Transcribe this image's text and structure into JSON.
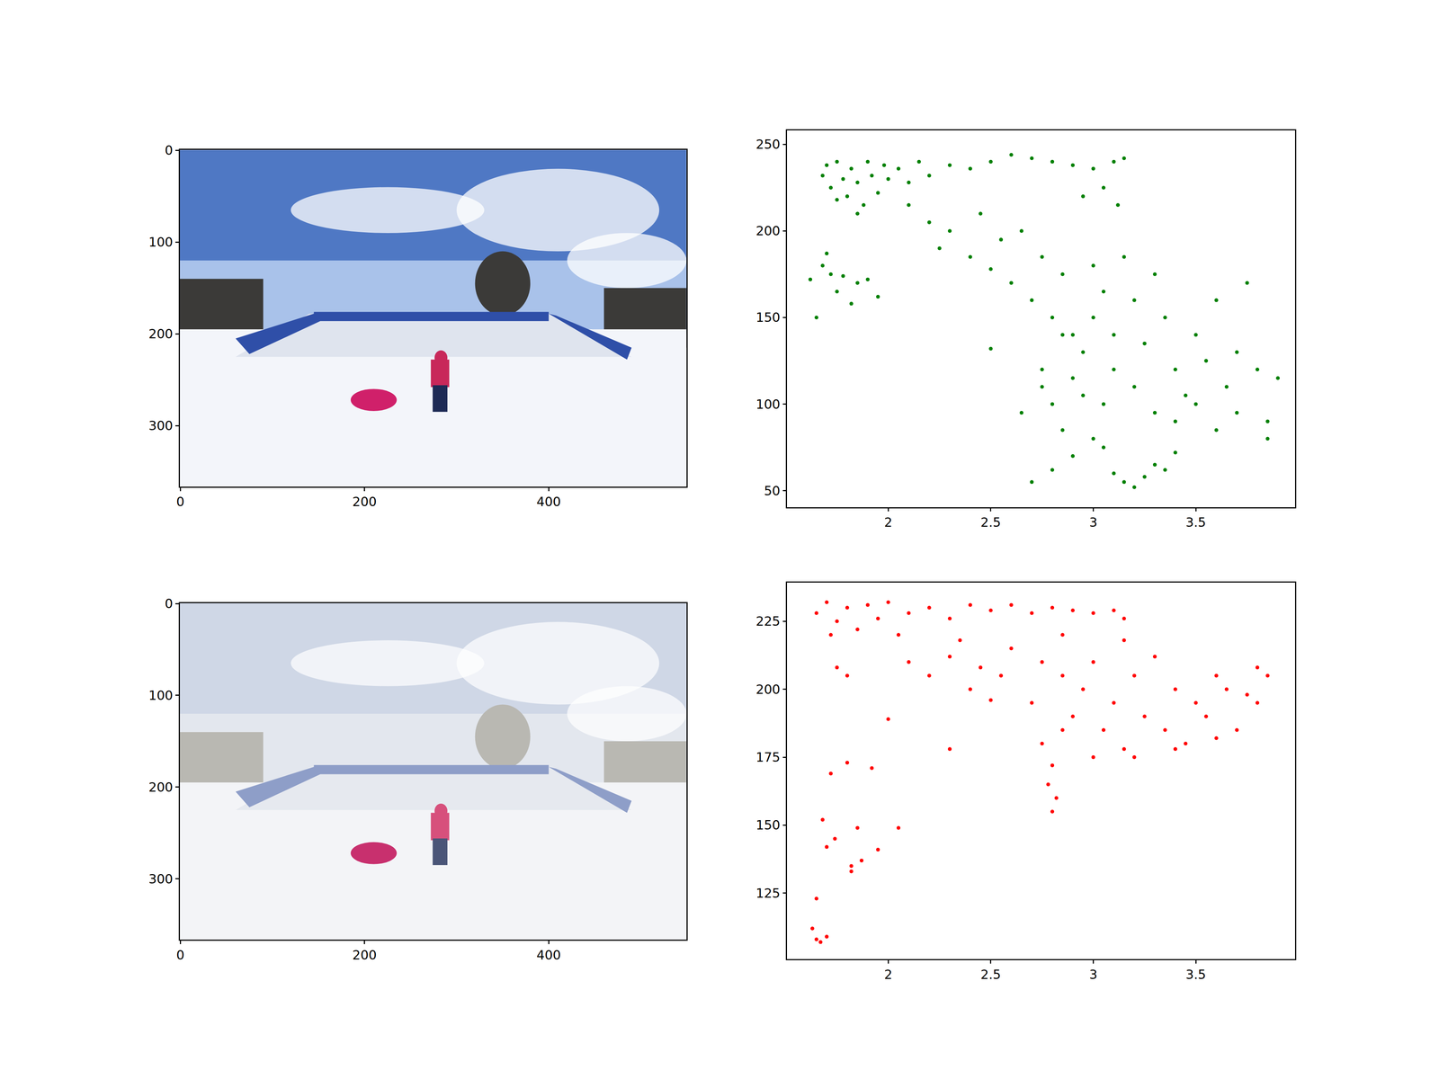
{
  "chart_data": [
    {
      "type": "image",
      "xlim": [
        -0.5,
        549.5
      ],
      "ylim": [
        366.5,
        -0.5
      ],
      "xticks": [
        0,
        200,
        400
      ],
      "yticks": [
        0,
        100,
        200,
        300
      ]
    },
    {
      "type": "scatter",
      "color": "#008000",
      "marker": "circle",
      "x": [
        1.62,
        1.65,
        1.68,
        1.7,
        1.72,
        1.75,
        1.78,
        1.82,
        1.85,
        1.9,
        1.95,
        1.68,
        1.7,
        1.72,
        1.75,
        1.78,
        1.8,
        1.82,
        1.85,
        1.88,
        1.9,
        1.92,
        1.95,
        1.98,
        2.0,
        1.85,
        1.75,
        2.05,
        2.1,
        2.15,
        2.2,
        2.3,
        2.4,
        2.5,
        2.6,
        2.7,
        2.8,
        2.9,
        3.0,
        3.1,
        3.15,
        3.05,
        3.12,
        2.95,
        2.1,
        2.2,
        2.25,
        2.3,
        2.4,
        2.45,
        2.5,
        2.55,
        2.6,
        2.65,
        2.7,
        2.75,
        2.8,
        2.85,
        2.5,
        2.9,
        2.75,
        2.8,
        2.85,
        2.9,
        2.95,
        3.0,
        3.0,
        3.05,
        3.05,
        3.1,
        3.1,
        3.15,
        3.2,
        3.2,
        3.25,
        3.3,
        3.3,
        3.35,
        3.4,
        3.45,
        3.5,
        3.55,
        3.6,
        3.65,
        3.7,
        3.75,
        3.8,
        3.85,
        3.9,
        3.85,
        3.7,
        3.6,
        3.5,
        3.4,
        2.85,
        2.95,
        2.7,
        2.8,
        2.9,
        3.0,
        3.1,
        3.15,
        3.2,
        3.25,
        3.3,
        3.35,
        3.4,
        3.05,
        2.75,
        2.65
      ],
      "values": [
        172,
        150,
        180,
        187,
        175,
        165,
        174,
        158,
        170,
        172,
        162,
        232,
        238,
        225,
        240,
        230,
        220,
        236,
        228,
        215,
        240,
        232,
        222,
        238,
        230,
        210,
        218,
        236,
        228,
        240,
        232,
        238,
        236,
        240,
        244,
        242,
        240,
        238,
        236,
        240,
        242,
        225,
        215,
        220,
        215,
        205,
        190,
        200,
        185,
        210,
        178,
        195,
        170,
        200,
        160,
        185,
        150,
        175,
        132,
        140,
        120,
        100,
        85,
        115,
        130,
        150,
        180,
        165,
        100,
        140,
        120,
        185,
        160,
        110,
        135,
        175,
        95,
        150,
        120,
        105,
        140,
        125,
        160,
        110,
        130,
        170,
        120,
        90,
        115,
        80,
        95,
        85,
        100,
        90,
        140,
        105,
        55,
        62,
        70,
        80,
        60,
        55,
        52,
        58,
        65,
        62,
        72,
        75,
        110,
        95
      ],
      "xlim": [
        1.507,
        3.984
      ],
      "ylim": [
        40.5,
        258
      ],
      "xticks": [
        2.0,
        2.5,
        3.0,
        3.5
      ],
      "yticks": [
        50,
        100,
        150,
        200,
        250
      ]
    },
    {
      "type": "image",
      "xlim": [
        -0.5,
        549.5
      ],
      "ylim": [
        366.5,
        -0.5
      ],
      "xticks": [
        0,
        200,
        400
      ],
      "yticks": [
        0,
        100,
        200,
        300
      ]
    },
    {
      "type": "scatter",
      "color": "#ff0000",
      "marker": "circle",
      "x": [
        1.63,
        1.65,
        1.67,
        1.65,
        1.7,
        1.68,
        1.7,
        1.72,
        1.74,
        1.82,
        1.82,
        1.85,
        1.87,
        1.8,
        1.92,
        1.95,
        2.05,
        2.0,
        1.8,
        1.75,
        1.65,
        1.7,
        1.75,
        1.8,
        1.85,
        1.9,
        1.95,
        2.0,
        2.1,
        2.2,
        2.3,
        2.4,
        2.5,
        2.6,
        2.7,
        2.8,
        2.9,
        3.0,
        3.1,
        3.15,
        1.72,
        2.05,
        2.35,
        2.6,
        2.85,
        3.15,
        2.1,
        2.2,
        2.3,
        2.4,
        2.45,
        2.5,
        2.55,
        2.3,
        2.7,
        2.75,
        2.85,
        2.75,
        2.8,
        2.82,
        2.8,
        2.78,
        2.9,
        2.95,
        3.0,
        3.05,
        3.1,
        3.15,
        3.2,
        3.25,
        3.3,
        3.35,
        3.4,
        3.45,
        3.5,
        3.55,
        3.6,
        3.65,
        3.7,
        3.75,
        3.8,
        3.85,
        3.8,
        3.6,
        3.4,
        3.0,
        3.2,
        2.85
      ],
      "values": [
        112,
        108,
        107,
        123,
        109,
        152,
        142,
        169,
        145,
        133,
        135,
        149,
        137,
        173,
        171,
        141,
        149,
        189,
        205,
        208,
        228,
        232,
        225,
        230,
        222,
        231,
        226,
        232,
        228,
        230,
        226,
        231,
        229,
        231,
        228,
        230,
        229,
        228,
        229,
        226,
        220,
        220,
        218,
        215,
        220,
        218,
        210,
        205,
        212,
        200,
        208,
        196,
        205,
        178,
        195,
        210,
        205,
        180,
        172,
        160,
        155,
        165,
        190,
        200,
        210,
        185,
        195,
        178,
        205,
        190,
        212,
        185,
        200,
        180,
        195,
        190,
        205,
        200,
        185,
        198,
        208,
        205,
        195,
        182,
        178,
        175,
        175,
        185
      ],
      "xlim": [
        1.507,
        3.984
      ],
      "ylim": [
        100.7,
        239.2
      ],
      "xticks": [
        2.0,
        2.5,
        3.0,
        3.5
      ],
      "yticks": [
        125,
        150,
        175,
        200,
        225
      ]
    }
  ]
}
